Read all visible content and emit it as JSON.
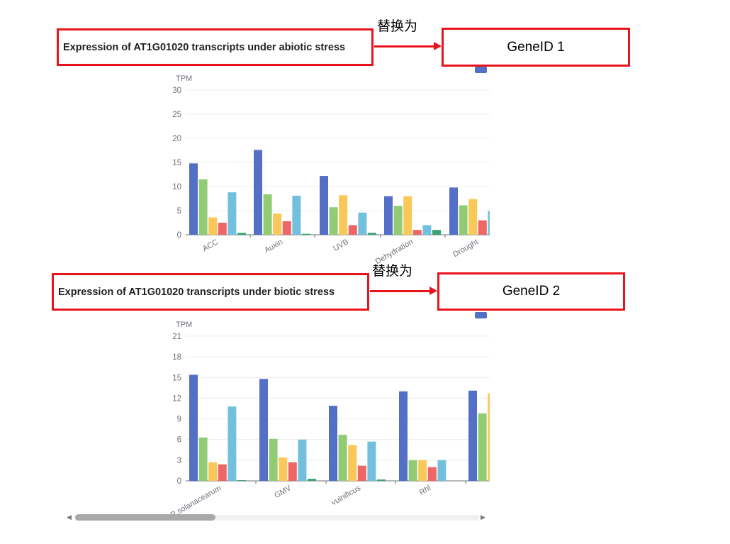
{
  "annotations": [
    {
      "replace_label": "替换为",
      "original_title": "Expression of AT1G01020 transcripts under abiotic stress",
      "replacement": "GeneID 1"
    },
    {
      "replace_label": "替换为",
      "original_title": "Expression of AT1G01020 transcripts under biotic stress",
      "replacement": "GeneID 2"
    }
  ],
  "colors": {
    "accent_red": "#e8141c",
    "series": [
      "#5470c6",
      "#91cc75",
      "#fac858",
      "#ee6666",
      "#73c0de",
      "#3ba272"
    ]
  },
  "chart_data": [
    {
      "type": "bar",
      "title": "Expression of AT1G01020 transcripts under abiotic stress",
      "ylabel": "TPM",
      "ylim": [
        0,
        30
      ],
      "yticks": [
        0,
        5,
        10,
        15,
        20,
        25,
        30
      ],
      "grid": true,
      "legend": "top-right",
      "categories": [
        "ACC",
        "Auxin",
        "UVB",
        "Dehydration",
        "Drought"
      ],
      "series": [
        {
          "values": [
            14.8,
            17.6,
            12.2,
            8.0,
            9.8
          ]
        },
        {
          "values": [
            11.5,
            8.4,
            5.7,
            6.0,
            6.1
          ]
        },
        {
          "values": [
            3.6,
            4.4,
            8.2,
            8.0,
            7.4
          ]
        },
        {
          "values": [
            2.5,
            2.8,
            2.0,
            1.0,
            3.0
          ]
        },
        {
          "values": [
            8.8,
            8.1,
            4.6,
            2.0,
            4.9
          ]
        },
        {
          "values": [
            0.4,
            0.2,
            0.4,
            1.0,
            null
          ]
        }
      ]
    },
    {
      "type": "bar",
      "title": "Expression of AT1G01020 transcripts under biotic stress",
      "ylabel": "TPM",
      "ylim": [
        0,
        21
      ],
      "yticks": [
        0,
        3,
        6,
        9,
        12,
        15,
        18,
        21
      ],
      "grid": true,
      "legend": "top-right",
      "categories": [
        "R.solanacearum",
        "GMV",
        "vulnificus",
        "Rhl",
        ""
      ],
      "series": [
        {
          "values": [
            15.4,
            14.8,
            10.9,
            13.0,
            13.1
          ]
        },
        {
          "values": [
            6.3,
            6.1,
            6.7,
            3.0,
            9.8
          ]
        },
        {
          "values": [
            2.7,
            3.4,
            5.2,
            3.0,
            12.7
          ]
        },
        {
          "values": [
            2.4,
            2.7,
            2.2,
            2.0,
            null
          ]
        },
        {
          "values": [
            10.8,
            6.0,
            5.7,
            3.0,
            null
          ]
        },
        {
          "values": [
            0.1,
            0.3,
            0.2,
            null,
            null
          ]
        }
      ]
    }
  ]
}
